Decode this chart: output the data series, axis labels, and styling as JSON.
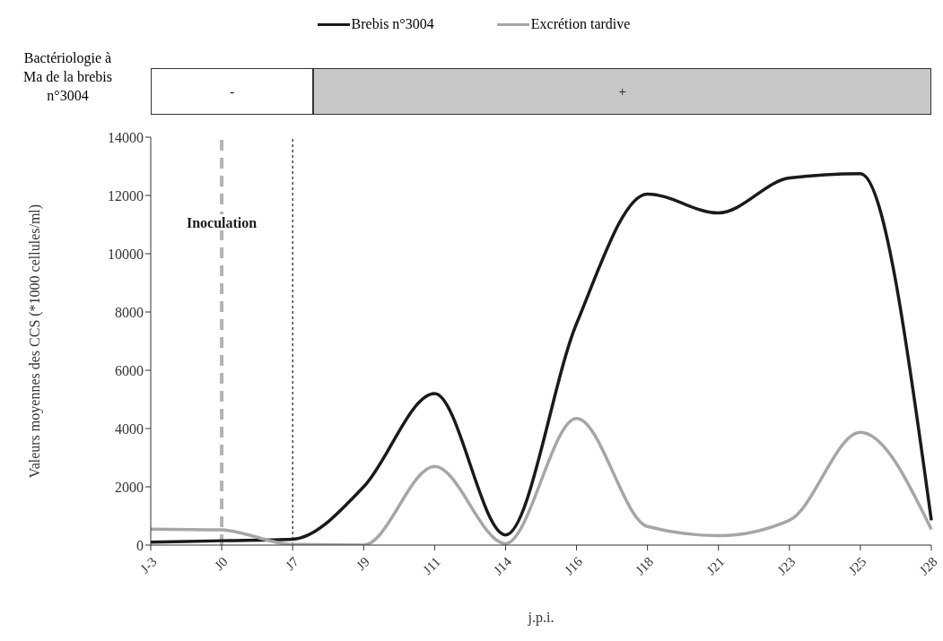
{
  "chart_data": {
    "type": "line",
    "xlabel": "j.p.i.",
    "ylabel": "Valeurs moyennes des CCS (*1000 cellules/ml)",
    "categories": [
      "J-3",
      "J0",
      "J7",
      "J9",
      "J11",
      "J14",
      "J16",
      "J18",
      "J21",
      "J23",
      "J25",
      "J28"
    ],
    "series": [
      {
        "name": "Brebis n°3004",
        "color": "#1a1a1a",
        "values": [
          100,
          150,
          200,
          2000,
          5200,
          350,
          7600,
          12050,
          11400,
          12600,
          12750,
          850
        ]
      },
      {
        "name": "Excrétion tardive",
        "color": "#a6a6a6",
        "values": [
          550,
          520,
          20,
          0,
          2700,
          50,
          4350,
          640,
          320,
          850,
          3870,
          540
        ]
      }
    ],
    "ylim": [
      0,
      14000
    ],
    "yticks": [
      0,
      2000,
      4000,
      6000,
      8000,
      10000,
      12000,
      14000
    ],
    "ref_lines": [
      {
        "axis": "x",
        "value": "J0",
        "label": "Inoculation",
        "color": "#b3b3b3",
        "line_style": "dashed"
      },
      {
        "axis": "x",
        "value": "J7",
        "color": "#1a1a1a",
        "line_style": "dotted"
      }
    ],
    "annotations": [
      "Bactériologie à Ma de la brebis n°3004",
      "-",
      "+"
    ],
    "legend": "top",
    "grid": false,
    "marker": "none",
    "line_style": "solid"
  }
}
